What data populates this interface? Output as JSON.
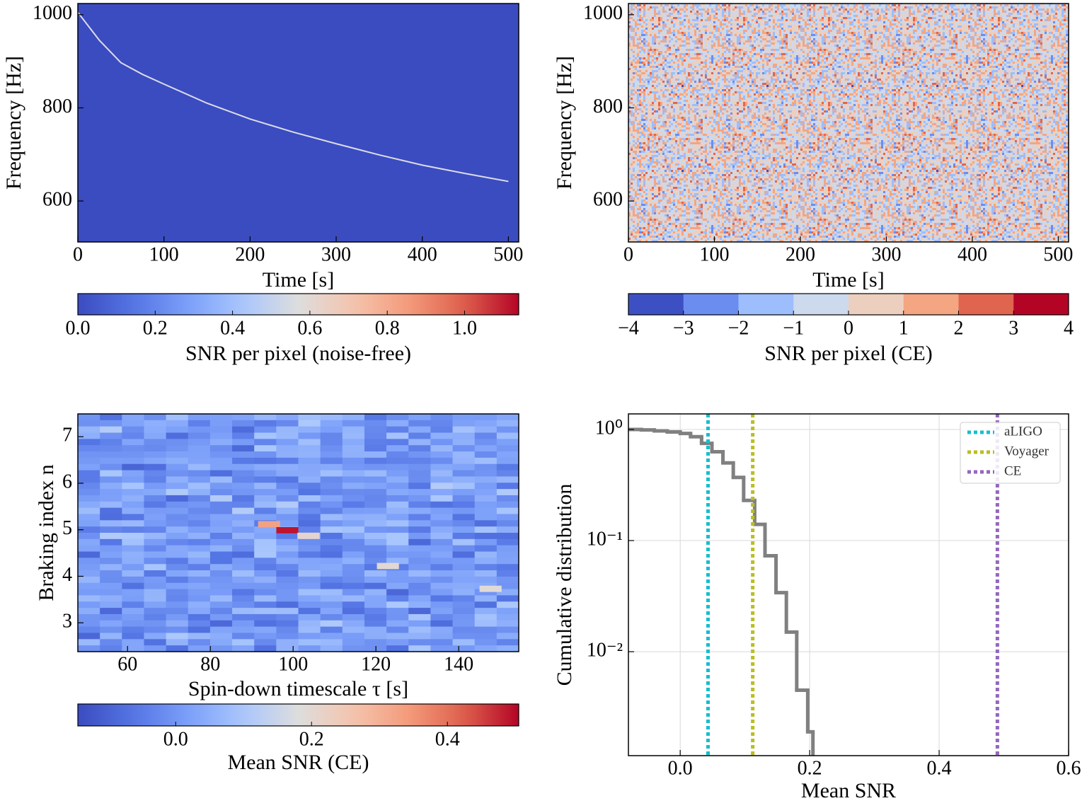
{
  "chart_data": [
    {
      "type": "spectrogram",
      "xlabel": "Time [s]",
      "ylabel": "Frequency [Hz]",
      "xlim": [
        0,
        512
      ],
      "ylim": [
        512,
        1024
      ],
      "xticks": [
        0,
        100,
        200,
        300,
        400,
        500
      ],
      "yticks": [
        600,
        800,
        1000
      ],
      "background_value": 0,
      "series": [
        {
          "color": "#dcdce8",
          "x": [
            0,
            25,
            50,
            75,
            100,
            150,
            200,
            250,
            300,
            350,
            400,
            450,
            500
          ],
          "values": [
            1005,
            945,
            897,
            872,
            851,
            810,
            776,
            748,
            723,
            699,
            677,
            659,
            642
          ]
        }
      ],
      "colorbar": {
        "label": "SNR per pixel (noise-free)",
        "lim": [
          0,
          1.14
        ],
        "ticks": [
          {
            "value": 0,
            "label": "0.0"
          },
          0.2,
          0.4,
          0.6,
          0.8,
          {
            "value": 1,
            "label": "1.0"
          }
        ]
      }
    },
    {
      "type": "noise-spectrogram",
      "xlabel": "Time [s]",
      "ylabel": "Frequency [Hz]",
      "xlim": [
        0,
        512
      ],
      "ylim": [
        512,
        1024
      ],
      "xticks": [
        0,
        100,
        200,
        300,
        400,
        500
      ],
      "yticks": [
        600,
        800,
        1000
      ],
      "colorbar": {
        "label": "SNR per pixel (CE)",
        "lim": [
          -4,
          4
        ],
        "ticks": [
          {
            "value": -4,
            "label": "−4"
          },
          {
            "value": -3,
            "label": "−3"
          },
          {
            "value": -2,
            "label": "−2"
          },
          {
            "value": -1,
            "label": "−1"
          },
          0,
          1,
          2,
          3,
          4
        ],
        "colors": [
          "#3d50c3",
          "#6b8df0",
          "#9dbdfc",
          "#cdd9ec",
          "#eccfbf",
          "#f4a582",
          "#e0654f",
          "#b40426"
        ]
      }
    },
    {
      "type": "heatmap",
      "xlabel": "Spin-down timescale τ [s]",
      "ylabel": "Braking index n",
      "xlim": [
        48,
        154.5
      ],
      "ylim": [
        2.38,
        7.49
      ],
      "xticks": [
        60,
        80,
        100,
        120,
        140
      ],
      "yticks": [
        3,
        4,
        5,
        6,
        7
      ],
      "cells": {
        "x": [
          94.2,
          98.6,
          103.7,
          122.9,
          147.7
        ],
        "y": [
          5.12,
          4.99,
          4.87,
          4.22,
          3.73
        ],
        "values": [
          0.33,
          0.49,
          0.21,
          0.2,
          0.19
        ]
      },
      "colorbar": {
        "label": "Mean SNR (CE)",
        "lim": [
          -0.144,
          0.505
        ],
        "ticks": [
          {
            "value": 0,
            "label": "0.0"
          },
          0.2,
          0.4
        ]
      }
    },
    {
      "type": "step",
      "xlabel": "Mean SNR",
      "ylabel": "Cumulative distribution",
      "xlim": [
        -0.08,
        0.6
      ],
      "ylim": [
        0.00116,
        1.38
      ],
      "log_y": true,
      "grid": true,
      "xticks": [
        {
          "value": 0,
          "label": "0.0"
        },
        0.2,
        0.4,
        0.6
      ],
      "yticks": [
        {
          "value": 1,
          "label": "10⁰"
        },
        {
          "value": 0.1,
          "label": "10⁻¹"
        },
        {
          "value": 0.01,
          "label": "10⁻²"
        }
      ],
      "series": [
        {
          "color": "#808080",
          "bins": [
            -0.08,
            -0.06,
            -0.04,
            -0.02,
            0.0,
            0.016,
            0.033,
            0.049,
            0.066,
            0.082,
            0.098,
            0.115,
            0.131,
            0.148,
            0.164,
            0.18,
            0.197,
            0.205
          ],
          "values": [
            1.0,
            0.99,
            0.97,
            0.95,
            0.92,
            0.86,
            0.75,
            0.63,
            0.5,
            0.37,
            0.23,
            0.14,
            0.073,
            0.034,
            0.015,
            0.0045,
            0.0019
          ]
        }
      ],
      "vlines": [
        {
          "name": "aLIGO",
          "x": 0.043,
          "color": "#17becf"
        },
        {
          "name": "Voyager",
          "x": 0.112,
          "color": "#bcbd22"
        },
        {
          "name": "CE",
          "x": 0.49,
          "color": "#9467bd"
        }
      ],
      "legend": "upper right"
    }
  ]
}
